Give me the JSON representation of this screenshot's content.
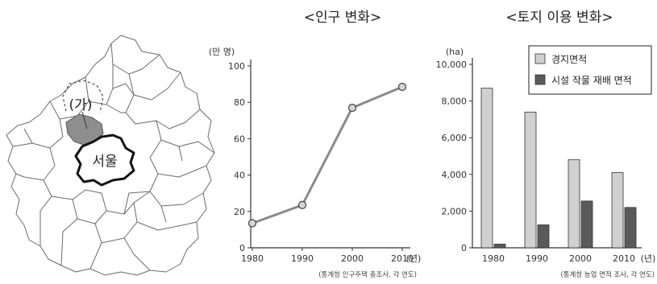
{
  "map": {
    "region_label": "(가)",
    "seoul_label": "서울",
    "colors": {
      "region_fill": "#8e8e8e",
      "seoul_fill": "#ffffff",
      "outline": "#555555"
    }
  },
  "chart_data": [
    {
      "type": "line",
      "title": "<인구 변화>",
      "ylabel": "(만 명)",
      "xlabel": "(년)",
      "x": [
        "1980",
        "1990",
        "2000",
        "2010"
      ],
      "series": [
        {
          "values": [
            13.5,
            23.5,
            77,
            88.5
          ]
        }
      ],
      "ylim": [
        0,
        100
      ],
      "yticks": [
        "0",
        "20",
        "40",
        "60",
        "80",
        "100"
      ],
      "source": "(통계청 인구주택 총조사, 각 연도)",
      "colors": {
        "line": "#8a8a8a",
        "marker_fill": "#d4d4d4"
      }
    },
    {
      "type": "bar",
      "title": "<토지 이용 변화>",
      "ylabel": "(ha)",
      "xlabel": "(년)",
      "categories": [
        "1980",
        "1990",
        "2000",
        "2010"
      ],
      "series": [
        {
          "name": "경지면적",
          "values": [
            8700,
            7400,
            4800,
            4100
          ],
          "color": "#d0d0d0"
        },
        {
          "name": "시설 작물 재배 면적",
          "values": [
            200,
            1250,
            2550,
            2200
          ],
          "color": "#5a5a5a"
        }
      ],
      "ylim": [
        0,
        10000
      ],
      "yticks": [
        "0",
        "2,000",
        "4,000",
        "6,000",
        "8,000",
        "10,000"
      ],
      "legend": "top-right",
      "source": "(통계청 농업 면적 조사, 각 연도)"
    }
  ]
}
